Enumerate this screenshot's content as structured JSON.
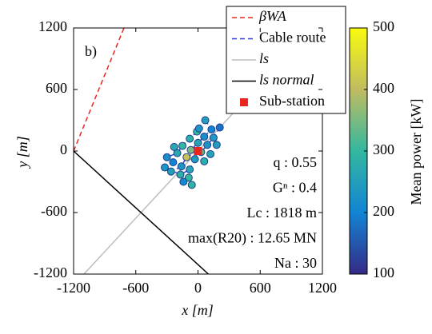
{
  "chart_data": {
    "type": "scatter",
    "panel_label": "b)",
    "x_label": "x [m]",
    "y_label": "y [m]",
    "xlim": [
      -1200,
      1200
    ],
    "ylim": [
      -1200,
      1200
    ],
    "xticks": [
      -1200,
      -600,
      0,
      600,
      1200
    ],
    "yticks": [
      -1200,
      -600,
      0,
      600,
      1200
    ],
    "series": [
      {
        "name": "βWA",
        "color": "#e8261f",
        "style": "dashed",
        "x": [
          -1200,
          -714
        ],
        "y": [
          0,
          1200
        ]
      },
      {
        "name": "Cable route",
        "color": "#2b3fe0",
        "style": "dashed",
        "x": [
          70,
          130,
          60,
          0,
          -70,
          0,
          null,
          210,
          150,
          90,
          30,
          0,
          null,
          -10,
          -80,
          -150,
          -200,
          -300,
          null,
          0,
          -110,
          -160,
          -260,
          null,
          0,
          -30,
          -80,
          -170,
          -320
        ],
        "y": [
          300,
          210,
          140,
          80,
          10,
          0,
          null,
          230,
          130,
          60,
          -10,
          0,
          null,
          190,
          120,
          50,
          -20,
          -60,
          null,
          0,
          -60,
          -150,
          -200,
          null,
          0,
          -80,
          -180,
          -230,
          -160
        ]
      },
      {
        "name": "ls",
        "color": "#bdbdbd",
        "style": "solid",
        "x": [
          -1100,
          1100
        ],
        "y": [
          -1200,
          1200
        ]
      },
      {
        "name": "ls normal",
        "color": "#000000",
        "style": "solid",
        "x": [
          -1200,
          100
        ],
        "y": [
          0,
          -1200
        ]
      },
      {
        "name": "Sub-station",
        "color": "#e8261f",
        "style": "square",
        "x": [
          0
        ],
        "y": [
          0
        ]
      }
    ],
    "points": {
      "x": [
        70,
        130,
        210,
        -10,
        60,
        150,
        -80,
        0,
        90,
        -150,
        -70,
        30,
        -200,
        -110,
        -30,
        60,
        -240,
        -160,
        -80,
        -260,
        -170,
        -90,
        -320,
        -60,
        -140,
        120,
        -230,
        10,
        180,
        -300
      ],
      "y": [
        300,
        210,
        230,
        190,
        140,
        130,
        120,
        80,
        60,
        50,
        10,
        -10,
        -20,
        -60,
        -80,
        -100,
        -110,
        -150,
        -180,
        -200,
        -230,
        -260,
        -160,
        -330,
        -300,
        -30,
        40,
        220,
        60,
        -60
      ],
      "power": [
        250,
        200,
        180,
        300,
        220,
        240,
        280,
        260,
        230,
        300,
        350,
        320,
        270,
        410,
        240,
        280,
        200,
        230,
        260,
        250,
        280,
        300,
        230,
        290,
        210,
        260,
        270,
        230,
        250,
        220
      ]
    },
    "annotations": [
      "q : 0.55",
      "Gⁿ : 0.4",
      "Lc : 1818 m",
      "max(R20) : 12.65 MN",
      "Na : 30"
    ],
    "colorbar": {
      "label": "Mean power [kW]",
      "clim": [
        100,
        500
      ],
      "ticks": [
        100,
        200,
        300,
        400,
        500
      ],
      "colormap": [
        "#352a87",
        "#1284d4",
        "#33b8a0",
        "#c0bc60",
        "#f9fb0e"
      ]
    }
  }
}
